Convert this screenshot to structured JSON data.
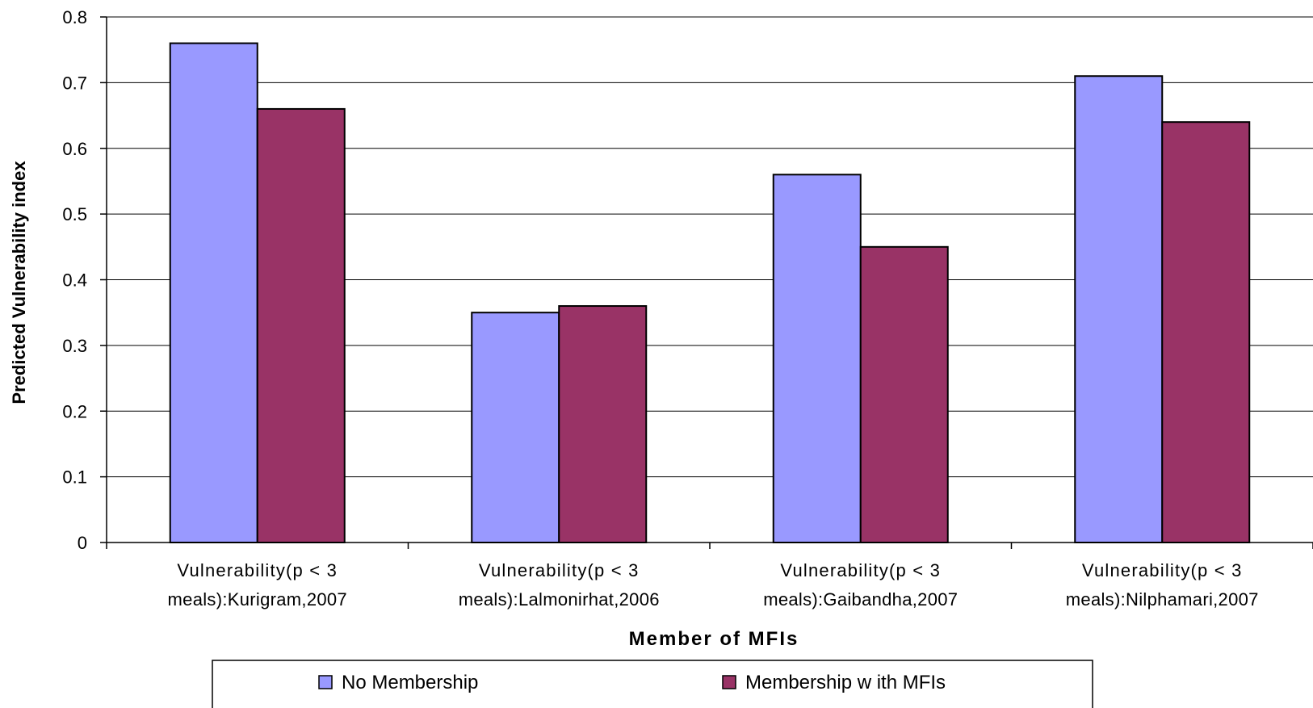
{
  "chart_data": {
    "type": "bar",
    "title": "",
    "xlabel": "Member of MFIs",
    "ylabel": "Predicted Vulnerability index",
    "ylim": [
      0,
      0.8
    ],
    "yticks": [
      "0",
      "0.1",
      "0.2",
      "0.3",
      "0.4",
      "0.5",
      "0.6",
      "0.7",
      "0.8"
    ],
    "grid": true,
    "legend_position": "bottom",
    "categories": [
      [
        "Vulnerability(p < 3",
        "meals):Kurigram,2007"
      ],
      [
        "Vulnerability(p < 3",
        "meals):Lalmonirhat,2006"
      ],
      [
        "Vulnerability(p < 3",
        "meals):Gaibandha,2007"
      ],
      [
        "Vulnerability(p < 3",
        "meals):Nilphamari,2007"
      ]
    ],
    "series": [
      {
        "name": "No Membership",
        "color": "#9999ff",
        "values": [
          0.76,
          0.35,
          0.56,
          0.71
        ]
      },
      {
        "name": "Membership w ith MFIs",
        "color": "#993366",
        "values": [
          0.66,
          0.36,
          0.45,
          0.64
        ]
      }
    ]
  }
}
